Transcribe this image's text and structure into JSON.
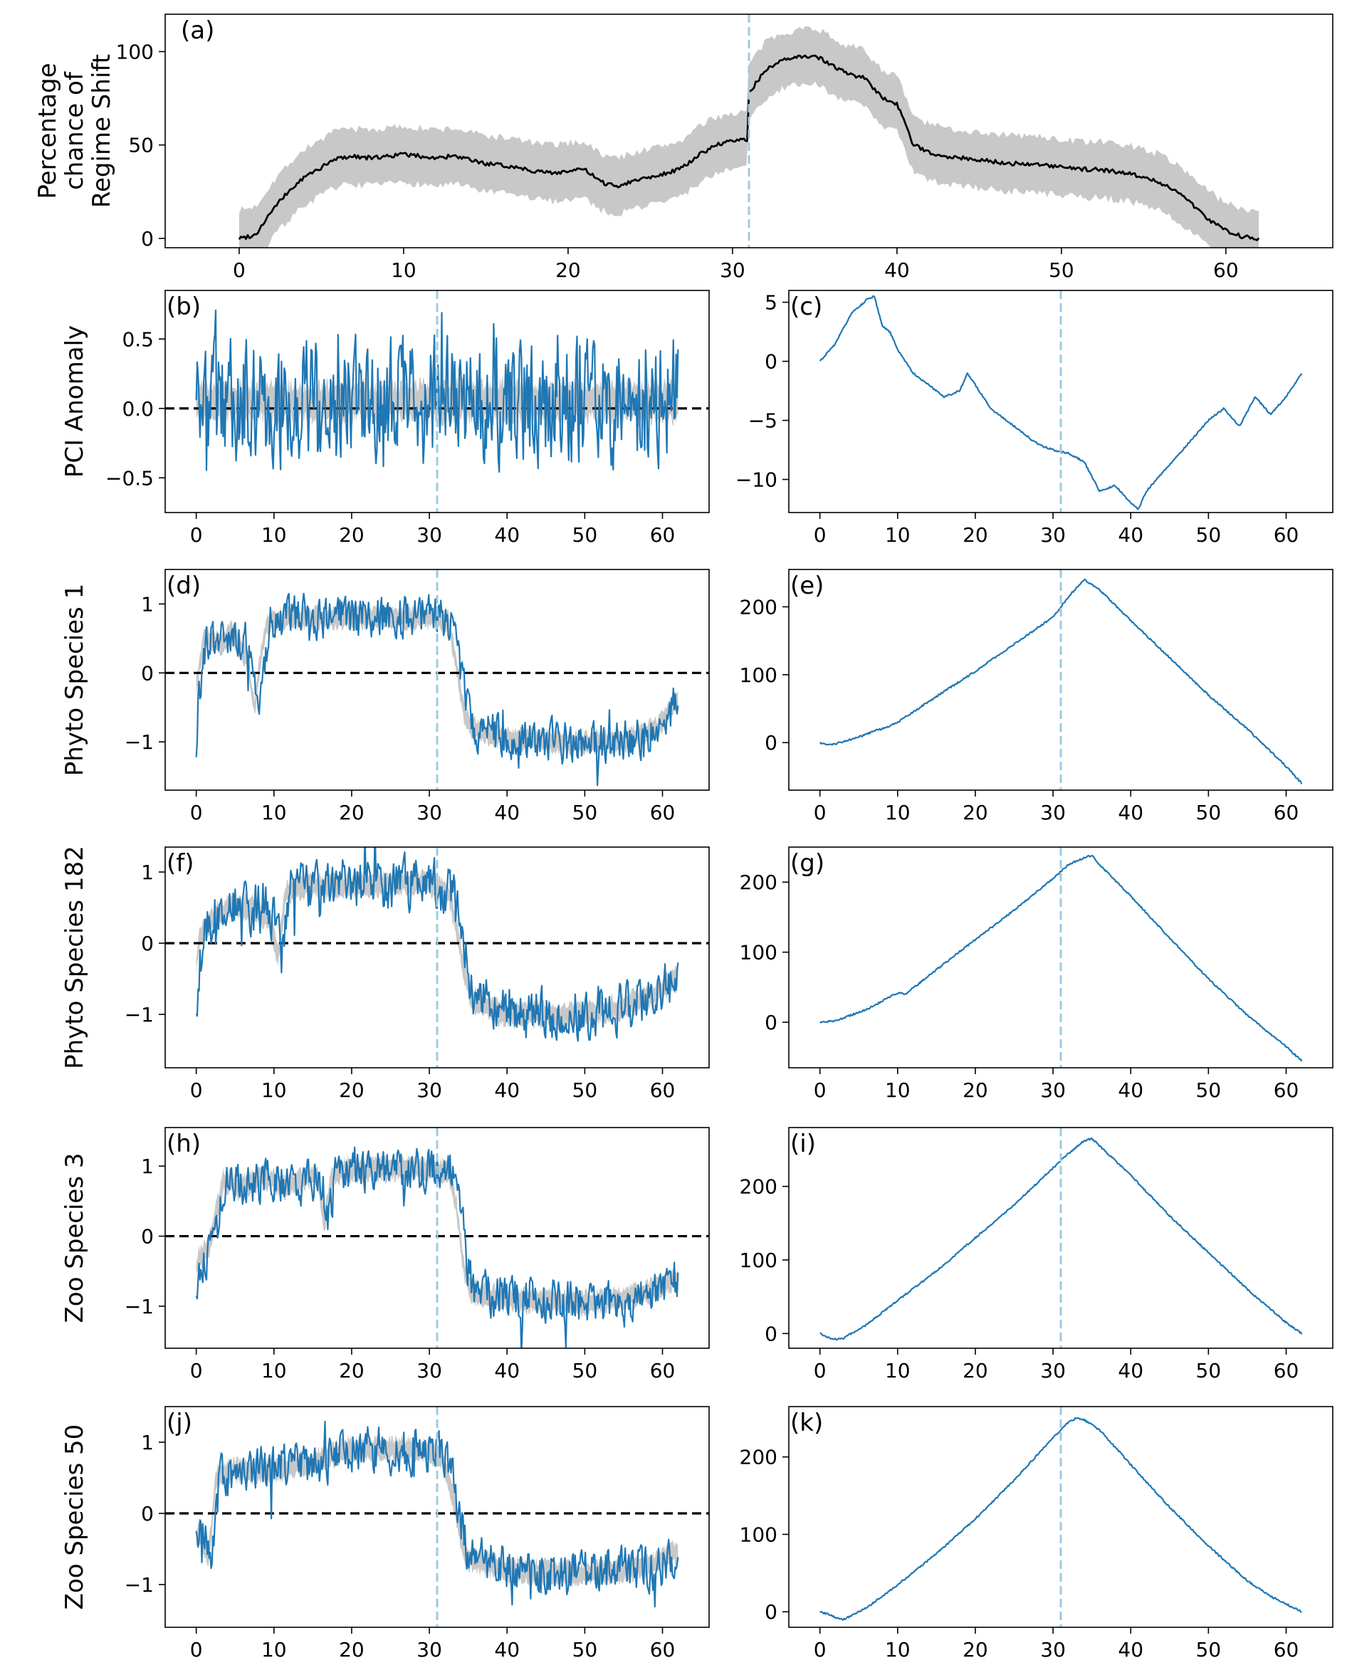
{
  "figure": {
    "vline_x": 31,
    "colors": {
      "line": "#1f77b4",
      "band": "#c8c8c8",
      "black": "#000000",
      "vline": "#9ecae1"
    }
  },
  "chart_data": [
    {
      "id": "a",
      "label": "(a)",
      "type": "line",
      "ylabel": [
        "Percentage",
        "chance of",
        "Regime Shift"
      ],
      "xlim": [
        -4.5,
        66.5
      ],
      "ylim": [
        -5,
        120
      ],
      "xticks": [
        0,
        10,
        20,
        30,
        40,
        50,
        60
      ],
      "yticks": [
        0,
        50,
        100
      ],
      "band_halfwidth": 15,
      "zero_line": false,
      "series": [
        {
          "name": "mean",
          "color": "#000000",
          "x": [
            0,
            1,
            2,
            3,
            4,
            5,
            6,
            7,
            8,
            9,
            10,
            11,
            12,
            13,
            14,
            15,
            16,
            17,
            18,
            19,
            20,
            21,
            22,
            23,
            24,
            25,
            26,
            27,
            28,
            29,
            30,
            30.9,
            31,
            32,
            33,
            34,
            35,
            36,
            37,
            38,
            39,
            40,
            41,
            42,
            43,
            44,
            45,
            46,
            47,
            48,
            49,
            50,
            51,
            52,
            53,
            54,
            55,
            56,
            57,
            58,
            59,
            60,
            61,
            62
          ],
          "y": [
            0,
            2,
            15,
            25,
            33,
            38,
            43,
            44,
            43,
            44,
            45,
            44,
            43,
            44,
            42,
            40,
            39,
            38,
            36,
            35,
            36,
            37,
            30,
            28,
            31,
            33,
            35,
            38,
            45,
            50,
            52,
            53,
            78,
            90,
            95,
            97,
            98,
            93,
            88,
            86,
            76,
            72,
            50,
            46,
            44,
            43,
            42,
            41,
            40,
            40,
            39,
            38,
            37,
            37,
            36,
            35,
            33,
            30,
            25,
            18,
            10,
            4,
            1,
            0
          ]
        }
      ]
    },
    {
      "id": "b",
      "label": "(b)",
      "type": "noisy-line",
      "ylabel": [
        "PCI Anomaly"
      ],
      "xlim": [
        -4,
        66
      ],
      "ylim": [
        -0.75,
        0.85
      ],
      "xticks": [
        0,
        10,
        20,
        30,
        40,
        50,
        60
      ],
      "yticks": [
        -0.5,
        0.0,
        0.5
      ],
      "yticklabels": [
        "−0.5",
        "0.0",
        "0.5"
      ],
      "band_halfwidth": 0.12,
      "zero_line": true,
      "noise": 0.25,
      "seed": 11,
      "base_x": [
        0,
        62
      ],
      "base_y": [
        0.05,
        0.05
      ],
      "x_end": 62
    },
    {
      "id": "c",
      "label": "(c)",
      "type": "line",
      "xlim": [
        -4,
        66
      ],
      "ylim": [
        -12.8,
        6
      ],
      "xticks": [
        0,
        10,
        20,
        30,
        40,
        50,
        60
      ],
      "yticks": [
        -10,
        -5,
        0,
        5
      ],
      "yticklabels": [
        "−10",
        "−5",
        "0",
        "5"
      ],
      "series": [
        {
          "name": "cumulative",
          "color": "#1f77b4",
          "x": [
            0,
            2,
            4,
            6,
            7,
            8,
            9,
            10,
            12,
            14,
            16,
            18,
            19,
            20,
            22,
            24,
            26,
            28,
            30,
            32,
            34,
            36,
            38,
            40,
            41,
            42,
            44,
            46,
            48,
            50,
            52,
            54,
            56,
            58,
            60,
            62
          ],
          "y": [
            0,
            1.5,
            4,
            5.2,
            5.5,
            3,
            2.5,
            1,
            -1,
            -2,
            -3,
            -2.5,
            -1,
            -2,
            -4,
            -5,
            -6,
            -7,
            -7.5,
            -7.8,
            -8.5,
            -11,
            -10.5,
            -12,
            -12.5,
            -11,
            -9.5,
            -8,
            -6.5,
            -5,
            -4,
            -5.5,
            -3,
            -4.5,
            -3,
            -1
          ]
        }
      ]
    },
    {
      "id": "d",
      "label": "(d)",
      "type": "noisy-line",
      "ylabel": [
        "Phyto Species 1"
      ],
      "xlim": [
        -4,
        66
      ],
      "ylim": [
        -1.7,
        1.5
      ],
      "xticks": [
        0,
        10,
        20,
        30,
        40,
        50,
        60
      ],
      "yticks": [
        -1,
        0,
        1
      ],
      "yticklabels": [
        "−1",
        "0",
        "1"
      ],
      "band_halfwidth": 0.13,
      "zero_line": true,
      "noise": 0.17,
      "seed": 23,
      "base_x": [
        0,
        0.5,
        1.5,
        2.5,
        3.5,
        5,
        6,
        7,
        8,
        8.5,
        9.5,
        12,
        30,
        33,
        34,
        35,
        36,
        40,
        50,
        55,
        60,
        62
      ],
      "base_y": [
        -1.0,
        -0.2,
        0.5,
        0.5,
        0.4,
        0.6,
        0.4,
        0.2,
        -0.5,
        0.0,
        0.7,
        0.8,
        0.8,
        0.75,
        0.1,
        -0.6,
        -0.8,
        -0.95,
        -1.0,
        -1.0,
        -0.8,
        -0.4
      ],
      "x_end": 62
    },
    {
      "id": "e",
      "label": "(e)",
      "type": "line",
      "xlim": [
        -4,
        66
      ],
      "ylim": [
        -70,
        255
      ],
      "xticks": [
        0,
        10,
        20,
        30,
        40,
        50,
        60
      ],
      "yticks": [
        0,
        100,
        200
      ],
      "series": [
        {
          "name": "cumulative",
          "color": "#1f77b4",
          "x": [
            0,
            1,
            2,
            4,
            6,
            7,
            8,
            10,
            15,
            20,
            25,
            30,
            32,
            34,
            36,
            40,
            45,
            50,
            55,
            60,
            62
          ],
          "y": [
            0,
            -3,
            -2,
            5,
            12,
            18,
            20,
            30,
            68,
            105,
            145,
            185,
            215,
            240,
            225,
            180,
            125,
            70,
            20,
            -35,
            -60
          ]
        }
      ]
    },
    {
      "id": "f",
      "label": "(f)",
      "type": "noisy-line",
      "ylabel": [
        "Phyto Species 182"
      ],
      "xlim": [
        -4,
        66
      ],
      "ylim": [
        -1.75,
        1.35
      ],
      "xticks": [
        0,
        10,
        20,
        30,
        40,
        50,
        60
      ],
      "yticks": [
        -1,
        0,
        1
      ],
      "yticklabels": [
        "−1",
        "0",
        "1"
      ],
      "band_halfwidth": 0.14,
      "zero_line": true,
      "noise": 0.2,
      "seed": 37,
      "base_x": [
        0,
        0.5,
        1,
        3,
        5,
        8,
        10,
        11,
        12,
        14,
        30,
        33,
        34,
        35,
        36,
        40,
        50,
        55,
        60,
        62
      ],
      "base_y": [
        -1.0,
        -0.3,
        0.1,
        0.4,
        0.5,
        0.5,
        0.3,
        -0.2,
        0.7,
        0.8,
        0.85,
        0.7,
        0.2,
        -0.4,
        -0.8,
        -1.0,
        -1.0,
        -0.9,
        -0.7,
        -0.5
      ],
      "x_end": 62
    },
    {
      "id": "g",
      "label": "(g)",
      "type": "line",
      "xlim": [
        -4,
        66
      ],
      "ylim": [
        -65,
        250
      ],
      "xticks": [
        0,
        10,
        20,
        30,
        40,
        50,
        60
      ],
      "yticks": [
        0,
        100,
        200
      ],
      "series": [
        {
          "name": "cumulative",
          "color": "#1f77b4",
          "x": [
            0,
            2,
            4,
            6,
            8,
            10,
            11,
            15,
            20,
            25,
            30,
            32,
            34,
            35,
            36,
            40,
            45,
            50,
            55,
            60,
            62
          ],
          "y": [
            0,
            2,
            10,
            18,
            30,
            42,
            40,
            75,
            118,
            160,
            205,
            225,
            235,
            238,
            225,
            180,
            120,
            62,
            10,
            -35,
            -55
          ]
        }
      ]
    },
    {
      "id": "h",
      "label": "(h)",
      "type": "noisy-line",
      "ylabel": [
        "Zoo Species 3"
      ],
      "xlim": [
        -4,
        66
      ],
      "ylim": [
        -1.6,
        1.55
      ],
      "xticks": [
        0,
        10,
        20,
        30,
        40,
        50,
        60
      ],
      "yticks": [
        -1,
        0,
        1
      ],
      "yticklabels": [
        "−1",
        "0",
        "1"
      ],
      "band_halfwidth": 0.14,
      "zero_line": true,
      "noise": 0.18,
      "seed": 53,
      "base_x": [
        0,
        1,
        2,
        3,
        4,
        6,
        9,
        12,
        16,
        17,
        18,
        20,
        30,
        33,
        34,
        35,
        36,
        40,
        50,
        55,
        60,
        62
      ],
      "base_y": [
        -0.6,
        -0.3,
        -0.2,
        0.3,
        0.8,
        0.7,
        0.85,
        0.7,
        0.9,
        0.2,
        0.9,
        0.95,
        0.95,
        0.9,
        0.4,
        -0.5,
        -0.8,
        -0.9,
        -0.95,
        -0.9,
        -0.75,
        -0.6
      ],
      "x_end": 62
    },
    {
      "id": "i",
      "label": "(i)",
      "type": "line",
      "xlim": [
        -4,
        66
      ],
      "ylim": [
        -20,
        280
      ],
      "xticks": [
        0,
        10,
        20,
        30,
        40,
        50,
        60
      ],
      "yticks": [
        0,
        100,
        200
      ],
      "series": [
        {
          "name": "cumulative",
          "color": "#1f77b4",
          "x": [
            0,
            1,
            2,
            3,
            4,
            6,
            10,
            15,
            20,
            25,
            30,
            32,
            34,
            35,
            36,
            40,
            45,
            50,
            55,
            60,
            62
          ],
          "y": [
            0,
            -5,
            -8,
            -7,
            0,
            12,
            45,
            85,
            130,
            175,
            225,
            245,
            262,
            265,
            255,
            215,
            160,
            110,
            60,
            15,
            0
          ]
        }
      ]
    },
    {
      "id": "j",
      "label": "(j)",
      "type": "noisy-line",
      "ylabel": [
        "Zoo Species 50"
      ],
      "xlim": [
        -4,
        66
      ],
      "ylim": [
        -1.6,
        1.5
      ],
      "xticks": [
        0,
        10,
        20,
        30,
        40,
        50,
        60
      ],
      "yticks": [
        -1,
        0,
        1
      ],
      "yticklabels": [
        "−1",
        "0",
        "1"
      ],
      "band_halfwidth": 0.14,
      "zero_line": true,
      "noise": 0.18,
      "seed": 71,
      "base_x": [
        0,
        1,
        2,
        2.5,
        3,
        5,
        8,
        10,
        15,
        20,
        25,
        30,
        32,
        33,
        34,
        35,
        40,
        50,
        55,
        60,
        62
      ],
      "base_y": [
        -0.4,
        -0.3,
        -0.6,
        -0.2,
        0.5,
        0.6,
        0.6,
        0.6,
        0.7,
        0.9,
        0.9,
        0.9,
        0.8,
        0.5,
        0.0,
        -0.6,
        -0.8,
        -0.85,
        -0.8,
        -0.7,
        -0.55
      ],
      "x_end": 62
    },
    {
      "id": "k",
      "label": "(k)",
      "type": "line",
      "xlim": [
        -4,
        66
      ],
      "ylim": [
        -20,
        265
      ],
      "xticks": [
        0,
        10,
        20,
        30,
        40,
        50,
        60
      ],
      "yticks": [
        0,
        100,
        200
      ],
      "series": [
        {
          "name": "cumulative",
          "color": "#1f77b4",
          "x": [
            0,
            1,
            2,
            3,
            4,
            6,
            10,
            15,
            20,
            25,
            30,
            32,
            33,
            34,
            36,
            40,
            45,
            50,
            55,
            58,
            60,
            62
          ],
          "y": [
            0,
            -3,
            -7,
            -10,
            -5,
            5,
            35,
            75,
            120,
            170,
            225,
            245,
            250,
            248,
            235,
            190,
            135,
            85,
            40,
            20,
            10,
            0
          ]
        }
      ]
    }
  ]
}
